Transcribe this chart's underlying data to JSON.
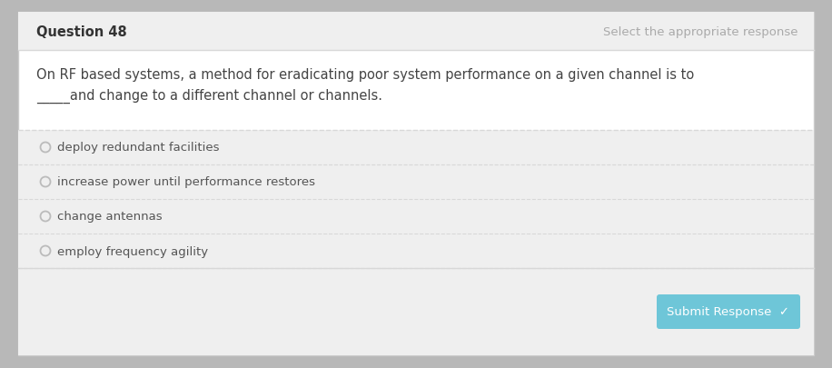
{
  "background_color": "#b8b8b8",
  "card_bg": "#ffffff",
  "header_bg": "#efefef",
  "footer_bg": "#efefef",
  "question_number": "Question 48",
  "instruction": "Select the appropriate response",
  "question_text_line1": "On RF based systems, a method for eradicating poor system performance on a given channel is to",
  "question_text_line2": "_____and change to a different channel or channels.",
  "options": [
    "deploy redundant facilities",
    "increase power until performance restores",
    "change antennas",
    "employ frequency agility"
  ],
  "submit_button_text": "Submit Response  ✓",
  "submit_bg": "#6ec6d8",
  "submit_text_color": "#ffffff",
  "header_text_color": "#333333",
  "instruction_text_color": "#aaaaaa",
  "question_text_color": "#444444",
  "option_text_color": "#555555",
  "radio_color": "#bbbbbb",
  "divider_color": "#d8d8d8",
  "border_color": "#cccccc",
  "question_fontsize": 10.5,
  "option_fontsize": 9.5,
  "header_fontsize": 10.5,
  "instruction_fontsize": 9.5
}
